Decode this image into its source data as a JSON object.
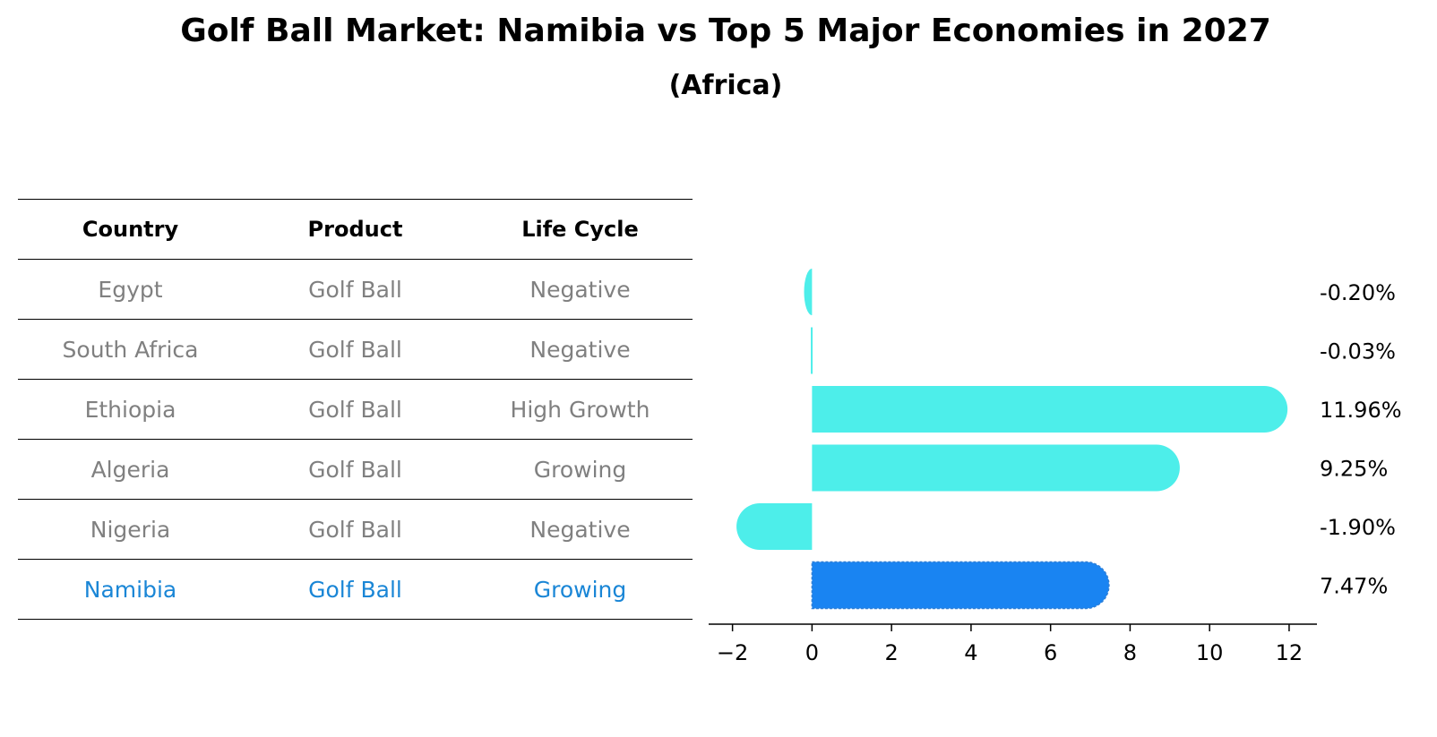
{
  "title": "Golf Ball Market: Namibia vs Top 5 Major Economies in 2027",
  "subtitle": "(Africa)",
  "table": {
    "headers": [
      "Country",
      "Product",
      "Life Cycle"
    ],
    "rows": [
      {
        "country": "Egypt",
        "product": "Golf Ball",
        "life_cycle": "Negative"
      },
      {
        "country": "South Africa",
        "product": "Golf Ball",
        "life_cycle": "Negative"
      },
      {
        "country": "Ethiopia",
        "product": "Golf Ball",
        "life_cycle": "High Growth"
      },
      {
        "country": "Algeria",
        "product": "Golf Ball",
        "life_cycle": "Growing"
      },
      {
        "country": "Nigeria",
        "product": "Golf Ball",
        "life_cycle": "Negative"
      },
      {
        "country": "Namibia",
        "product": "Golf Ball",
        "life_cycle": "Growing"
      }
    ]
  },
  "chart_data": {
    "type": "bar",
    "orientation": "horizontal",
    "categories": [
      "Egypt",
      "South Africa",
      "Ethiopia",
      "Algeria",
      "Nigeria",
      "Namibia"
    ],
    "values": [
      -0.2,
      -0.03,
      11.96,
      9.25,
      -1.9,
      7.47
    ],
    "labels": [
      "-0.20%",
      "-0.03%",
      "11.96%",
      "9.25%",
      "-1.90%",
      "7.47%"
    ],
    "highlight": "Namibia",
    "xlim": [
      -2.6,
      12.7
    ],
    "xticks": [
      -2,
      0,
      2,
      4,
      6,
      8,
      10,
      12
    ],
    "xtick_labels": [
      "−2",
      "0",
      "2",
      "4",
      "6",
      "8",
      "10",
      "12"
    ],
    "colors": {
      "default": "#4deeea",
      "highlight": "#1984f2"
    }
  }
}
